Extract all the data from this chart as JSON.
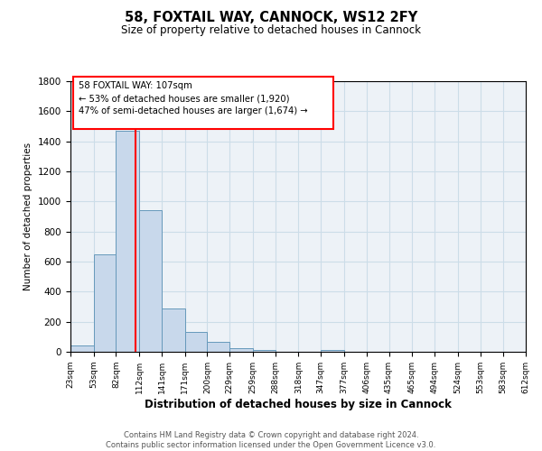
{
  "title": "58, FOXTAIL WAY, CANNOCK, WS12 2FY",
  "subtitle": "Size of property relative to detached houses in Cannock",
  "xlabel": "Distribution of detached houses by size in Cannock",
  "ylabel": "Number of detached properties",
  "bar_color": "#c8d8eb",
  "bar_edge_color": "#6699bb",
  "bins": [
    23,
    53,
    82,
    112,
    141,
    171,
    200,
    229,
    259,
    288,
    318,
    347,
    377,
    406,
    435,
    465,
    494,
    524,
    553,
    583,
    612
  ],
  "counts": [
    40,
    650,
    1470,
    940,
    290,
    130,
    65,
    25,
    10,
    0,
    0,
    10,
    0,
    0,
    0,
    0,
    0,
    0,
    0,
    0
  ],
  "tick_labels": [
    "23sqm",
    "53sqm",
    "82sqm",
    "112sqm",
    "141sqm",
    "171sqm",
    "200sqm",
    "229sqm",
    "259sqm",
    "288sqm",
    "318sqm",
    "347sqm",
    "377sqm",
    "406sqm",
    "435sqm",
    "465sqm",
    "494sqm",
    "524sqm",
    "553sqm",
    "583sqm",
    "612sqm"
  ],
  "ylim": [
    0,
    1800
  ],
  "yticks": [
    0,
    200,
    400,
    600,
    800,
    1000,
    1200,
    1400,
    1600,
    1800
  ],
  "property_line_x": 107,
  "annotation_line1": "58 FOXTAIL WAY: 107sqm",
  "annotation_line2": "← 53% of detached houses are smaller (1,920)",
  "annotation_line3": "47% of semi-detached houses are larger (1,674) →",
  "footer_text": "Contains HM Land Registry data © Crown copyright and database right 2024.\nContains public sector information licensed under the Open Government Licence v3.0.",
  "grid_color": "#ccdde8",
  "background_color": "#edf2f7"
}
